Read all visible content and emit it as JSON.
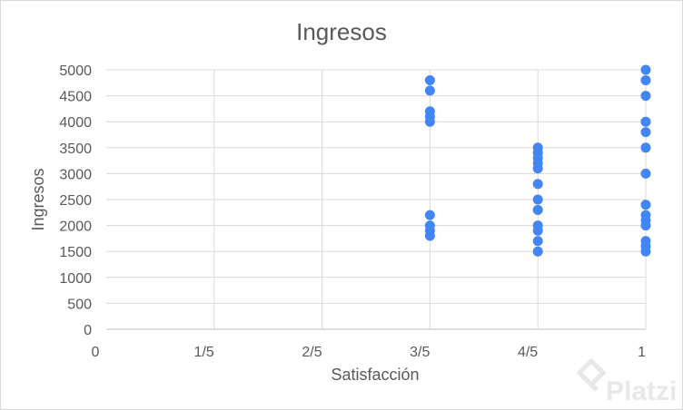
{
  "chart_data": {
    "type": "scatter",
    "title": "Ingresos",
    "xlabel": "Satisfacción",
    "ylabel": "Ingresos",
    "xlim": [
      0,
      1
    ],
    "ylim": [
      0,
      5000
    ],
    "x_ticks": [
      {
        "value": 0,
        "label": "0"
      },
      {
        "value": 0.2,
        "label": "1/5"
      },
      {
        "value": 0.4,
        "label": "2/5"
      },
      {
        "value": 0.6,
        "label": "3/5"
      },
      {
        "value": 0.8,
        "label": "4/5"
      },
      {
        "value": 1,
        "label": "1"
      }
    ],
    "y_ticks": [
      0,
      500,
      1000,
      1500,
      2000,
      2500,
      3000,
      3500,
      4000,
      4500,
      5000
    ],
    "grid": true,
    "point_color": "#4285f4",
    "points": [
      {
        "x": 0.6,
        "y": 4800
      },
      {
        "x": 0.6,
        "y": 4600
      },
      {
        "x": 0.6,
        "y": 4200
      },
      {
        "x": 0.6,
        "y": 4100
      },
      {
        "x": 0.6,
        "y": 4000
      },
      {
        "x": 0.6,
        "y": 2200
      },
      {
        "x": 0.6,
        "y": 2000
      },
      {
        "x": 0.6,
        "y": 1900
      },
      {
        "x": 0.6,
        "y": 1800
      },
      {
        "x": 0.8,
        "y": 3500
      },
      {
        "x": 0.8,
        "y": 3400
      },
      {
        "x": 0.8,
        "y": 3300
      },
      {
        "x": 0.8,
        "y": 3200
      },
      {
        "x": 0.8,
        "y": 3100
      },
      {
        "x": 0.8,
        "y": 2800
      },
      {
        "x": 0.8,
        "y": 2500
      },
      {
        "x": 0.8,
        "y": 2300
      },
      {
        "x": 0.8,
        "y": 2000
      },
      {
        "x": 0.8,
        "y": 1900
      },
      {
        "x": 0.8,
        "y": 1700
      },
      {
        "x": 0.8,
        "y": 1500
      },
      {
        "x": 1,
        "y": 5000
      },
      {
        "x": 1,
        "y": 4800
      },
      {
        "x": 1,
        "y": 4500
      },
      {
        "x": 1,
        "y": 4000
      },
      {
        "x": 1,
        "y": 3800
      },
      {
        "x": 1,
        "y": 3500
      },
      {
        "x": 1,
        "y": 3000
      },
      {
        "x": 1,
        "y": 2400
      },
      {
        "x": 1,
        "y": 2200
      },
      {
        "x": 1,
        "y": 2100
      },
      {
        "x": 1,
        "y": 2000
      },
      {
        "x": 1,
        "y": 1700
      },
      {
        "x": 1,
        "y": 1600
      },
      {
        "x": 1,
        "y": 1500
      }
    ]
  },
  "watermark": {
    "text": "Platzi",
    "icon": "platzi-logo-icon"
  }
}
